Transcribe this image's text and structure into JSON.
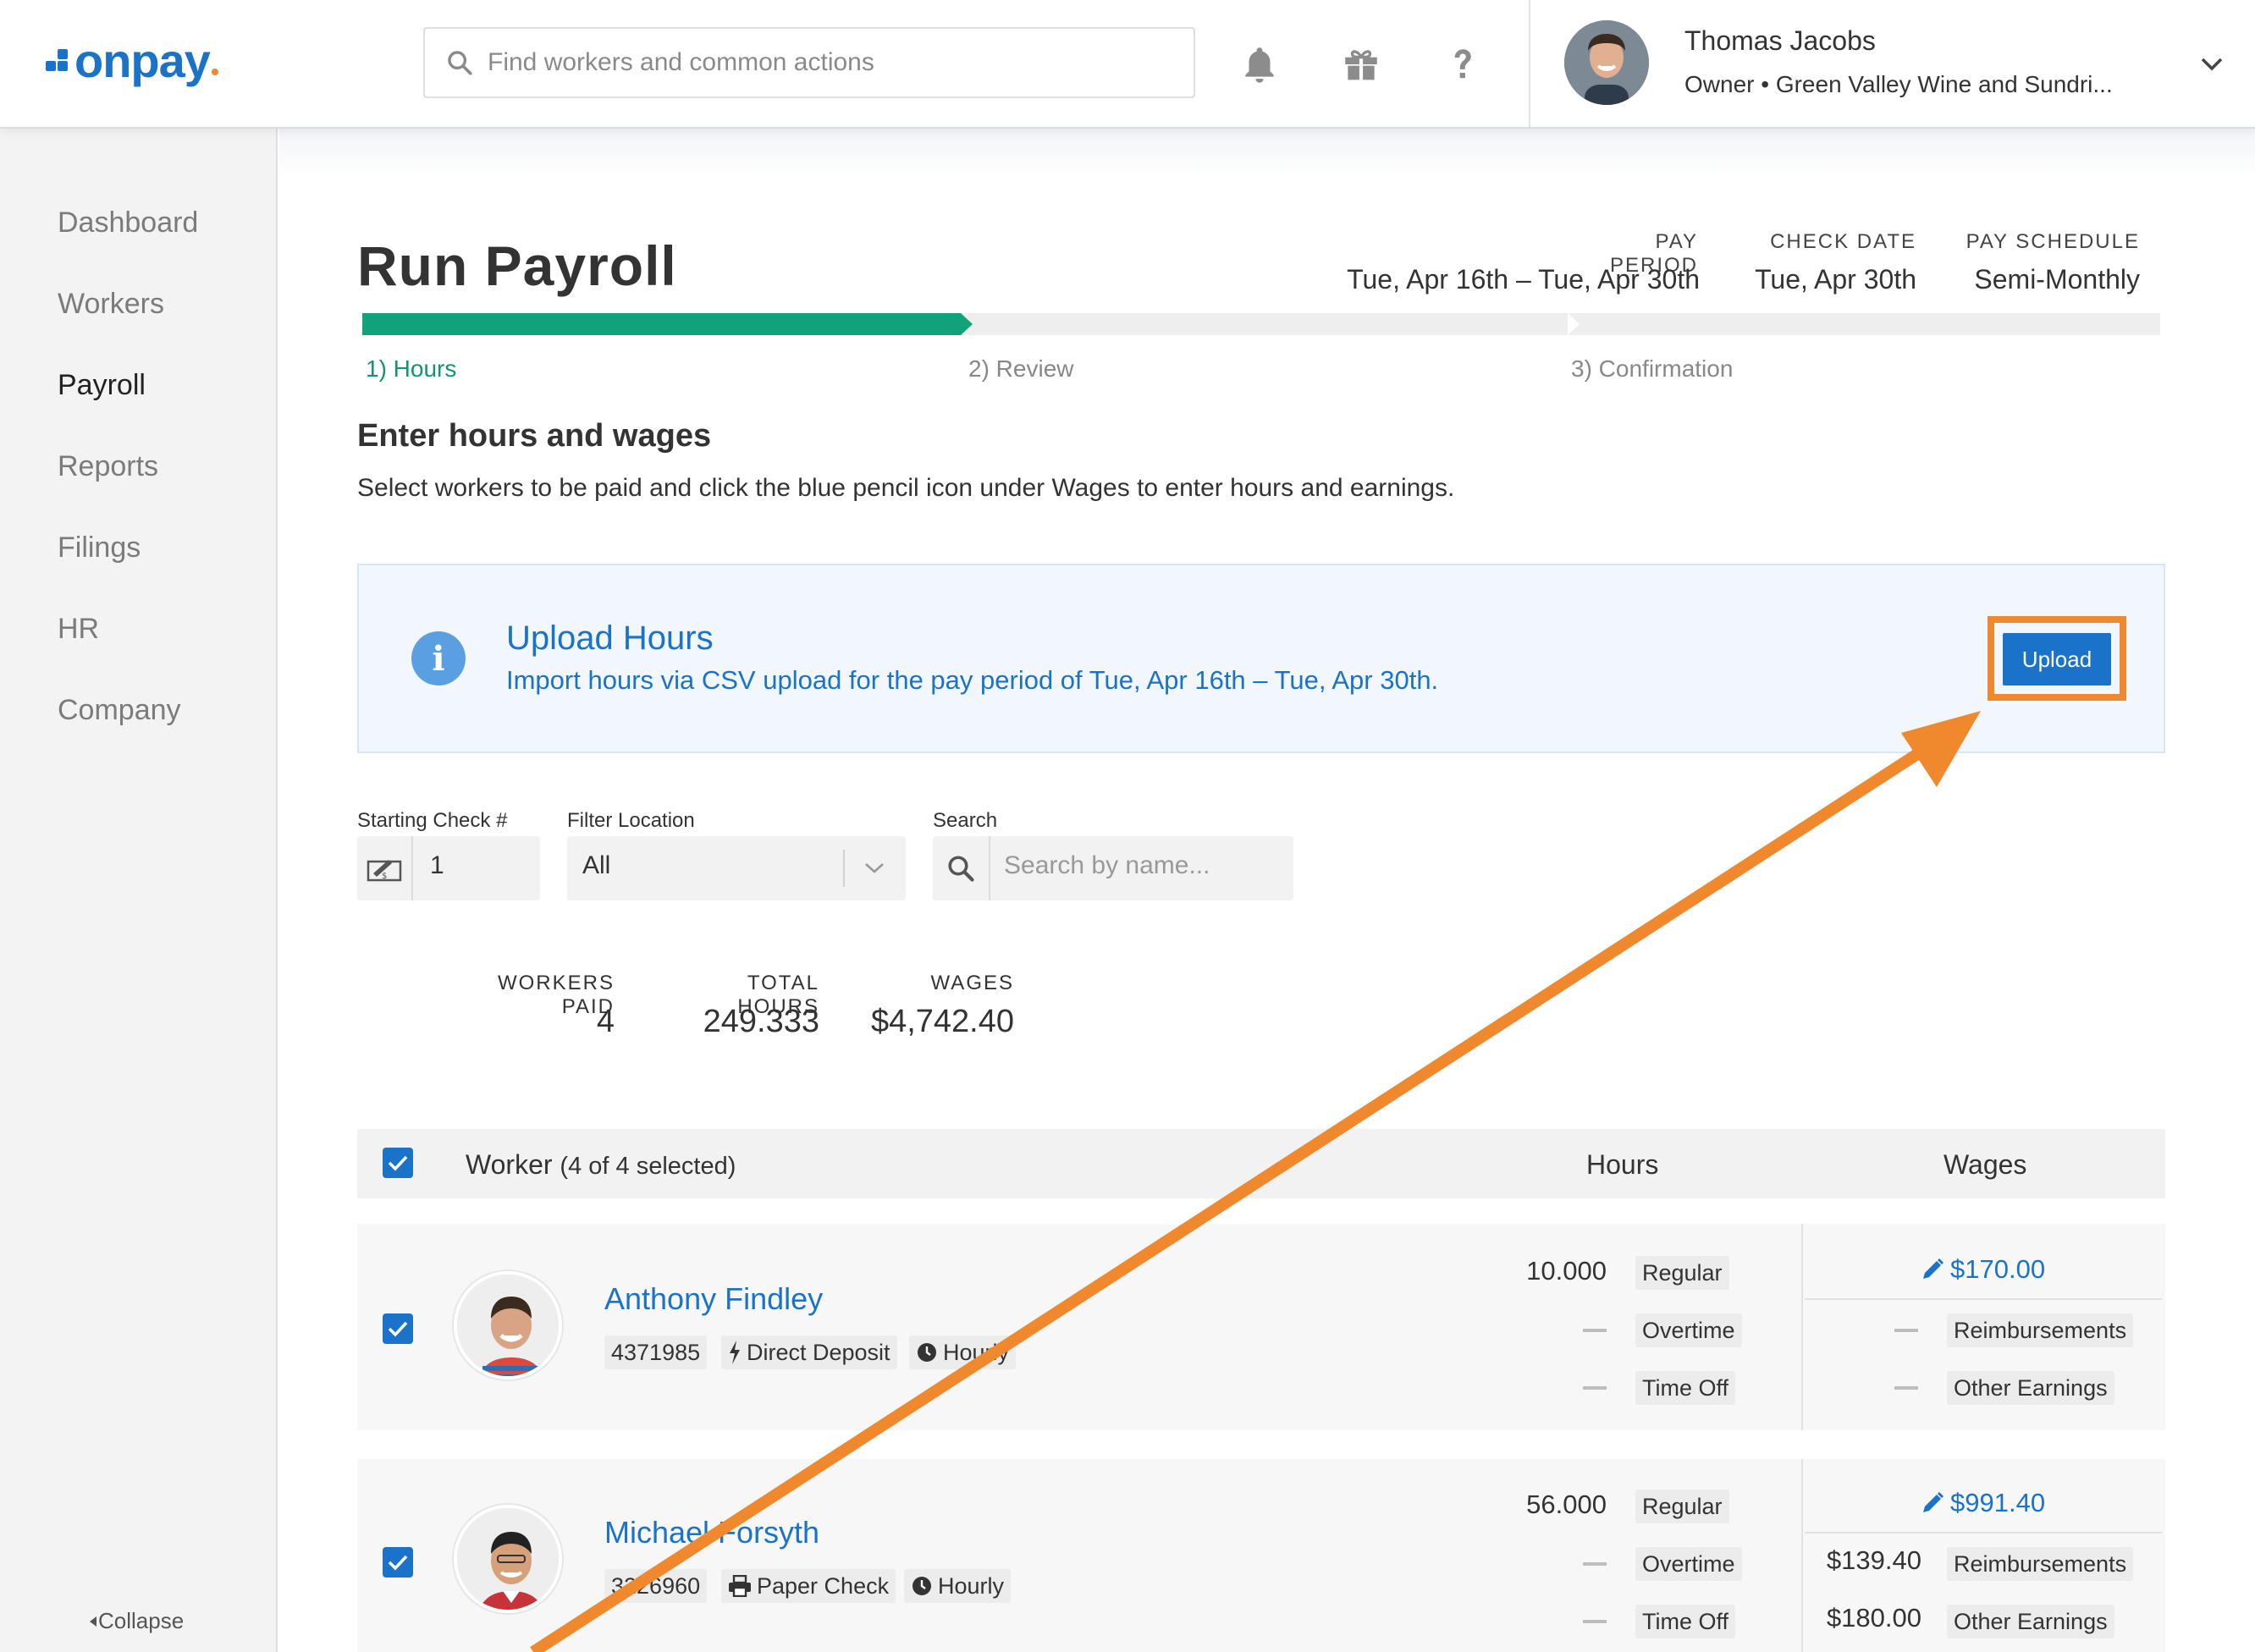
{
  "header": {
    "logo_text": "onpay",
    "search_placeholder": "Find workers and common actions",
    "user_name": "Thomas Jacobs",
    "user_role": "Owner • Green Valley Wine and Sundri..."
  },
  "sidebar": {
    "items": [
      {
        "label": "Dashboard",
        "active": false
      },
      {
        "label": "Workers",
        "active": false
      },
      {
        "label": "Payroll",
        "active": true
      },
      {
        "label": "Reports",
        "active": false
      },
      {
        "label": "Filings",
        "active": false
      },
      {
        "label": "HR",
        "active": false
      },
      {
        "label": "Company",
        "active": false
      }
    ],
    "collapse_label": "Collapse"
  },
  "page": {
    "title": "Run Payroll",
    "pay_period_label": "PAY PERIOD",
    "pay_period_value": "Tue, Apr 16th – Tue, Apr 30th",
    "check_date_label": "CHECK DATE",
    "check_date_value": "Tue, Apr 30th",
    "pay_schedule_label": "PAY SCHEDULE",
    "pay_schedule_value": "Semi-Monthly",
    "progress_fraction": 0.333,
    "steps": [
      "1) Hours",
      "2) Review",
      "3) Confirmation"
    ],
    "section_title": "Enter hours and wages",
    "section_desc": "Select workers to be paid and click the blue pencil icon under Wages to enter hours and earnings."
  },
  "upload": {
    "title": "Upload Hours",
    "desc": "Import hours via CSV upload for the pay period of Tue, Apr 16th – Tue, Apr 30th.",
    "button": "Upload"
  },
  "filters": {
    "check_label": "Starting Check #",
    "check_value": "1",
    "location_label": "Filter Location",
    "location_value": "All",
    "search_label": "Search",
    "search_placeholder": "Search by name..."
  },
  "stats": {
    "workers_paid_label": "WORKERS PAID",
    "workers_paid": "4",
    "total_hours_label": "TOTAL HOURS",
    "total_hours": "249.333",
    "wages_label": "WAGES",
    "wages": "$4,742.40"
  },
  "table": {
    "worker_header": "Worker",
    "selected_text": "(4 of 4 selected)",
    "hours_header": "Hours",
    "wages_header": "Wages",
    "rows": [
      {
        "name": "Anthony Findley",
        "id": "4371985",
        "payment": "Direct Deposit",
        "type": "Hourly",
        "regular_hours": "10.000",
        "regular_label": "Regular",
        "overtime_label": "Overtime",
        "timeoff_label": "Time Off",
        "wage": "$170.00",
        "reimbursements_value": "",
        "reimbursements_label": "Reimbursements",
        "other_value": "",
        "other_label": "Other Earnings"
      },
      {
        "name": "Michael Forsyth",
        "id": "3226960",
        "payment": "Paper Check",
        "type": "Hourly",
        "regular_hours": "56.000",
        "regular_label": "Regular",
        "overtime_label": "Overtime",
        "timeoff_label": "Time Off",
        "wage": "$991.40",
        "reimbursements_value": "$139.40",
        "reimbursements_label": "Reimbursements",
        "other_value": "$180.00",
        "other_label": "Other Earnings"
      }
    ]
  },
  "colors": {
    "brand_blue": "#1a73c9",
    "progress_green": "#12a27a",
    "annotation_orange": "#f0882d"
  }
}
